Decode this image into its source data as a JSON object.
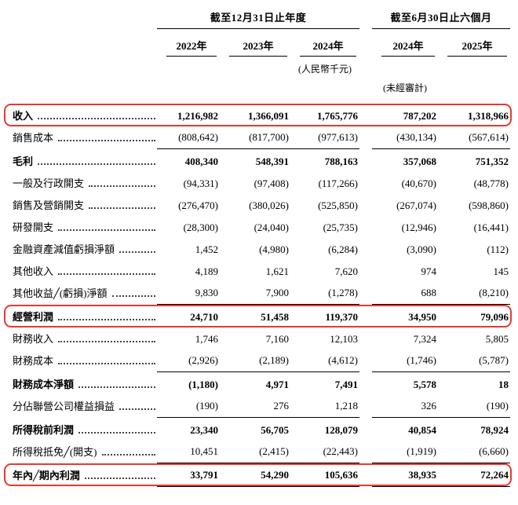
{
  "colors": {
    "highlight_box": "#e8392f"
  },
  "header": {
    "groups": [
      {
        "label": "截至12月31日止年度"
      },
      {
        "label": "截至6月30日止六個月"
      }
    ],
    "years": [
      "2022年",
      "2023年",
      "2024年",
      "2024年",
      "2025年"
    ],
    "unit_note": "(人民幣千元)",
    "audit_note": "(未經審計)"
  },
  "rows": [
    {
      "label": "收入",
      "values": [
        "1,216,982",
        "1,366,091",
        "1,765,776",
        "787,202",
        "1,318,966"
      ],
      "bold": true,
      "highlight": true,
      "rule_below": false
    },
    {
      "label": "銷售成本",
      "values": [
        "(808,642)",
        "(817,700)",
        "(977,613)",
        "(430,134)",
        "(567,614)"
      ],
      "bold": false,
      "highlight": false,
      "rule_below": true
    },
    {
      "label": "毛利",
      "values": [
        "408,340",
        "548,391",
        "788,163",
        "357,068",
        "751,352"
      ],
      "bold": true,
      "highlight": false,
      "rule_below": false
    },
    {
      "label": "一般及行政開支",
      "values": [
        "(94,331)",
        "(97,408)",
        "(117,266)",
        "(40,670)",
        "(48,778)"
      ],
      "bold": false,
      "highlight": false,
      "rule_below": false
    },
    {
      "label": "銷售及營銷開支",
      "values": [
        "(276,470)",
        "(380,026)",
        "(525,850)",
        "(267,074)",
        "(598,860)"
      ],
      "bold": false,
      "highlight": false,
      "rule_below": false
    },
    {
      "label": "研發開支",
      "values": [
        "(28,300)",
        "(24,040)",
        "(25,735)",
        "(12,946)",
        "(16,441)"
      ],
      "bold": false,
      "highlight": false,
      "rule_below": false
    },
    {
      "label": "金融資產減值虧損淨額",
      "values": [
        "1,452",
        "(4,980)",
        "(6,284)",
        "(3,090)",
        "(112)"
      ],
      "bold": false,
      "highlight": false,
      "rule_below": false
    },
    {
      "label": "其他收入",
      "values": [
        "4,189",
        "1,621",
        "7,620",
        "974",
        "145"
      ],
      "bold": false,
      "highlight": false,
      "rule_below": false
    },
    {
      "label": "其他收益╱(虧損)淨額",
      "values": [
        "9,830",
        "7,900",
        "(1,278)",
        "688",
        "(8,210)"
      ],
      "bold": false,
      "highlight": false,
      "rule_below": true
    },
    {
      "label": "經營利潤",
      "values": [
        "24,710",
        "51,458",
        "119,370",
        "34,950",
        "79,096"
      ],
      "bold": true,
      "highlight": true,
      "rule_below": false
    },
    {
      "label": "財務收入",
      "values": [
        "1,746",
        "7,160",
        "12,103",
        "7,324",
        "5,805"
      ],
      "bold": false,
      "highlight": false,
      "rule_below": false
    },
    {
      "label": "財務成本",
      "values": [
        "(2,926)",
        "(2,189)",
        "(4,612)",
        "(1,746)",
        "(5,787)"
      ],
      "bold": false,
      "highlight": false,
      "rule_below": true
    },
    {
      "label": "財務成本淨額",
      "values": [
        "(1,180)",
        "4,971",
        "7,491",
        "5,578",
        "18"
      ],
      "bold": true,
      "highlight": false,
      "rule_below": false
    },
    {
      "label": "分佔聯營公司權益損益",
      "values": [
        "(190)",
        "276",
        "1,218",
        "326",
        "(190)"
      ],
      "bold": false,
      "highlight": false,
      "rule_below": true
    },
    {
      "label": "所得稅前利潤",
      "values": [
        "23,340",
        "56,705",
        "128,079",
        "40,854",
        "78,924"
      ],
      "bold": true,
      "highlight": false,
      "rule_below": false
    },
    {
      "label": "所得稅抵免╱(開支)",
      "values": [
        "10,451",
        "(2,415)",
        "(22,443)",
        "(1,919)",
        "(6,660)"
      ],
      "bold": false,
      "highlight": false,
      "rule_below": true
    },
    {
      "label": "年內╱期內利潤",
      "values": [
        "33,791",
        "54,290",
        "105,636",
        "38,935",
        "72,264"
      ],
      "bold": true,
      "highlight": true,
      "rule_below": true
    }
  ]
}
